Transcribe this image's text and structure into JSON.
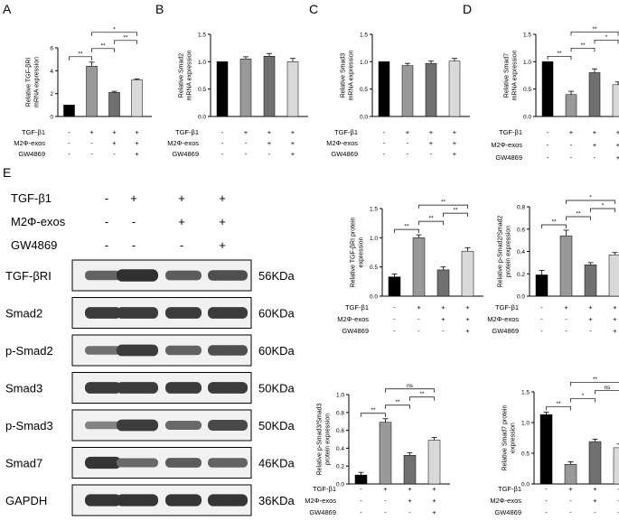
{
  "colors": {
    "c1": "#000000",
    "c2": "#999999",
    "c3": "#707070",
    "c4": "#d9d9d9"
  },
  "treatment_rows": {
    "tgf": [
      "-",
      "+",
      "+",
      "+"
    ],
    "m2": [
      "-",
      "-",
      "+",
      "+"
    ],
    "gw": [
      "-",
      "-",
      "-",
      "+"
    ]
  },
  "panel_letters": {
    "A": "A",
    "B": "B",
    "C": "C",
    "D": "D",
    "E": "E"
  },
  "row_labels": {
    "tgf": "TGF-β1",
    "m2": "M2Φ-exos",
    "gw": "GW4869"
  },
  "chart_data": [
    {
      "id": "A",
      "type": "bar",
      "ylabel": [
        "Relative TGF-βRI",
        "mRNA expression"
      ],
      "ylim": [
        0,
        6
      ],
      "ticks": [
        "0",
        "2",
        "4",
        "6"
      ],
      "tick_values": [
        0,
        2,
        4,
        6
      ],
      "values": [
        1.0,
        4.4,
        2.1,
        3.2
      ],
      "errors": [
        0,
        0.35,
        0.1,
        0.08
      ],
      "sig": [
        {
          "a": 0,
          "b": 1,
          "label": "**"
        },
        {
          "a": 1,
          "b": 2,
          "label": "**"
        },
        {
          "a": 1,
          "b": 3,
          "label": "*"
        },
        {
          "a": 2,
          "b": 3,
          "label": "**"
        }
      ]
    },
    {
      "id": "B",
      "type": "bar",
      "ylabel": [
        "Relative Smad2",
        "mRNA expression"
      ],
      "ylim": [
        0,
        1.5
      ],
      "ticks": [
        "0.0",
        "0.5",
        "1.0",
        "1.5"
      ],
      "tick_values": [
        0,
        0.5,
        1.0,
        1.5
      ],
      "values": [
        1.0,
        1.05,
        1.1,
        1.0
      ],
      "errors": [
        0,
        0.04,
        0.05,
        0.06
      ],
      "sig": []
    },
    {
      "id": "C",
      "type": "bar",
      "ylabel": [
        "Relative Smad3",
        "mRNA expression"
      ],
      "ylim": [
        0,
        1.5
      ],
      "ticks": [
        "0.0",
        "0.5",
        "1.0",
        "1.5"
      ],
      "tick_values": [
        0,
        0.5,
        1.0,
        1.5
      ],
      "values": [
        1.0,
        0.93,
        0.97,
        1.01
      ],
      "errors": [
        0,
        0.04,
        0.04,
        0.05
      ],
      "sig": []
    },
    {
      "id": "D",
      "type": "bar",
      "ylabel": [
        "Relative Smad7",
        "mRNA expression"
      ],
      "ylim": [
        0,
        1.5
      ],
      "ticks": [
        "0.0",
        "0.5",
        "1.0",
        "1.5"
      ],
      "tick_values": [
        0,
        0.5,
        1.0,
        1.5
      ],
      "values": [
        1.0,
        0.4,
        0.8,
        0.58
      ],
      "errors": [
        0,
        0.06,
        0.07,
        0.05
      ],
      "sig": [
        {
          "a": 0,
          "b": 1,
          "label": "**"
        },
        {
          "a": 1,
          "b": 2,
          "label": "**"
        },
        {
          "a": 1,
          "b": 3,
          "label": "**"
        },
        {
          "a": 2,
          "b": 3,
          "label": "*"
        }
      ]
    },
    {
      "id": "E1",
      "type": "bar",
      "ylabel": [
        "Relative TGF-βRI protein",
        "expression"
      ],
      "ylim": [
        0,
        1.5
      ],
      "ticks": [
        "0.0",
        "0.5",
        "1.0",
        "1.5"
      ],
      "tick_values": [
        0,
        0.5,
        1.0,
        1.5
      ],
      "values": [
        0.33,
        1.0,
        0.45,
        0.77
      ],
      "errors": [
        0.05,
        0.05,
        0.05,
        0.06
      ],
      "sig": [
        {
          "a": 0,
          "b": 1,
          "label": "**"
        },
        {
          "a": 1,
          "b": 2,
          "label": "**"
        },
        {
          "a": 1,
          "b": 3,
          "label": "**"
        },
        {
          "a": 2,
          "b": 3,
          "label": "**"
        }
      ]
    },
    {
      "id": "E2",
      "type": "bar",
      "ylabel": [
        "Relative p-Smad2/Smad2",
        "protein expression"
      ],
      "ylim": [
        0,
        0.8
      ],
      "ticks": [
        "0.0",
        "0.2",
        "0.4",
        "0.6",
        "0.8"
      ],
      "tick_values": [
        0,
        0.2,
        0.4,
        0.6,
        0.8
      ],
      "values": [
        0.19,
        0.54,
        0.28,
        0.37
      ],
      "errors": [
        0.04,
        0.05,
        0.02,
        0.02
      ],
      "sig": [
        {
          "a": 0,
          "b": 1,
          "label": "**"
        },
        {
          "a": 1,
          "b": 2,
          "label": "**"
        },
        {
          "a": 1,
          "b": 3,
          "label": "*"
        },
        {
          "a": 2,
          "b": 3,
          "label": "*"
        }
      ]
    },
    {
      "id": "E3",
      "type": "bar",
      "ylabel": [
        "Relative p-Smad3/Smad3",
        "protein expression"
      ],
      "ylim": [
        0,
        1.0
      ],
      "ticks": [
        "0.0",
        "0.2",
        "0.4",
        "0.6",
        "0.8",
        "1.0"
      ],
      "tick_values": [
        0,
        0.2,
        0.4,
        0.6,
        0.8,
        1.0
      ],
      "values": [
        0.1,
        0.69,
        0.32,
        0.49
      ],
      "errors": [
        0.03,
        0.04,
        0.03,
        0.03
      ],
      "sig": [
        {
          "a": 0,
          "b": 1,
          "label": "**"
        },
        {
          "a": 1,
          "b": 2,
          "label": "**"
        },
        {
          "a": 1,
          "b": 3,
          "label": "ns"
        },
        {
          "a": 2,
          "b": 3,
          "label": "**"
        }
      ]
    },
    {
      "id": "E4",
      "type": "bar",
      "ylabel": [
        "Relative Smad7 protein",
        "expression"
      ],
      "ylim": [
        0,
        1.5
      ],
      "ticks": [
        "0.0",
        "0.5",
        "1.0",
        "1.5"
      ],
      "tick_values": [
        0,
        0.5,
        1.0,
        1.5
      ],
      "values": [
        1.13,
        0.32,
        0.69,
        0.59
      ],
      "errors": [
        0.04,
        0.04,
        0.04,
        0.06
      ],
      "sig": [
        {
          "a": 0,
          "b": 1,
          "label": "**"
        },
        {
          "a": 1,
          "b": 2,
          "label": "*"
        },
        {
          "a": 1,
          "b": 3,
          "label": "**"
        },
        {
          "a": 2,
          "b": 3,
          "label": "ns"
        }
      ]
    }
  ],
  "blot": {
    "header": {
      "tgf": "TGF-β1",
      "m2": "M2Φ-exos",
      "gw": "GW4869"
    },
    "rows": [
      {
        "protein": "TGF-βRI",
        "kda": "56KDa",
        "intensity": [
          0.55,
          0.95,
          0.6,
          0.7
        ]
      },
      {
        "protein": "Smad2",
        "kda": "60KDa",
        "intensity": [
          0.85,
          0.85,
          0.85,
          0.85
        ]
      },
      {
        "protein": "p-Smad2",
        "kda": "60KDa",
        "intensity": [
          0.45,
          0.85,
          0.55,
          0.7
        ]
      },
      {
        "protein": "Smad3",
        "kda": "50KDa",
        "intensity": [
          0.85,
          0.85,
          0.85,
          0.85
        ]
      },
      {
        "protein": "p-Smad3",
        "kda": "50KDa",
        "intensity": [
          0.3,
          0.85,
          0.5,
          0.75
        ]
      },
      {
        "protein": "Smad7",
        "kda": "46KDa",
        "intensity": [
          0.9,
          0.5,
          0.6,
          0.55
        ]
      },
      {
        "protein": "GAPDH",
        "kda": "36KDa",
        "intensity": [
          0.9,
          0.9,
          0.9,
          0.9
        ]
      }
    ]
  }
}
